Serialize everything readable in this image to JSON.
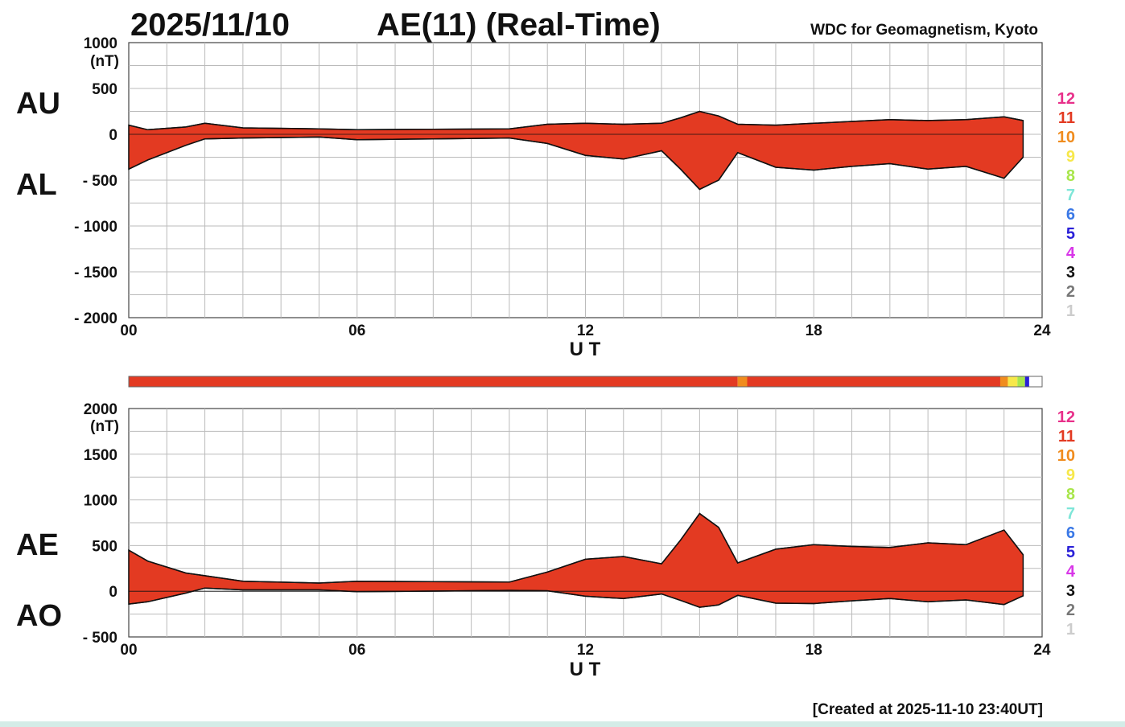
{
  "header": {
    "date": "2025/11/10",
    "title": "AE(11) (Real-Time)",
    "source": "WDC for Geomagnetism, Kyoto",
    "created": "[Created at 2025-11-10 23:40UT]"
  },
  "unit_label": "(nT)",
  "xlabel": "U T",
  "x_ticks": [
    "00",
    "06",
    "12",
    "18",
    "24"
  ],
  "station_count_scale": {
    "labels": [
      "12",
      "11",
      "10",
      "9",
      "8",
      "7",
      "6",
      "5",
      "4",
      "3",
      "2",
      "1"
    ],
    "colors": [
      "#e8308a",
      "#e33a22",
      "#f08c1e",
      "#f7e84a",
      "#a8e64a",
      "#7ee6d8",
      "#3a78e6",
      "#2a20d8",
      "#d836e8",
      "#111111",
      "#777777",
      "#cccccc"
    ]
  },
  "chart_data": [
    {
      "type": "area",
      "panel": "top",
      "series": [
        {
          "name": "AU",
          "x": [
            0,
            0.5,
            1.5,
            2,
            3,
            5,
            6,
            8,
            10,
            11,
            12,
            13,
            14,
            14.5,
            15,
            15.5,
            16,
            17,
            18,
            19,
            20,
            21,
            22,
            23,
            23.5
          ],
          "values": [
            100,
            50,
            80,
            120,
            70,
            60,
            50,
            55,
            60,
            110,
            120,
            110,
            120,
            180,
            250,
            200,
            110,
            100,
            120,
            140,
            160,
            150,
            160,
            190,
            150
          ]
        },
        {
          "name": "AL",
          "x": [
            0,
            0.5,
            1.5,
            2,
            3,
            5,
            6,
            8,
            10,
            11,
            12,
            13,
            14,
            14.5,
            15,
            15.5,
            16,
            17,
            18,
            19,
            20,
            21,
            22,
            23,
            23.5
          ],
          "values": [
            -380,
            -280,
            -120,
            -50,
            -40,
            -30,
            -60,
            -50,
            -40,
            -100,
            -230,
            -270,
            -180,
            -380,
            -600,
            -500,
            -200,
            -360,
            -390,
            -350,
            -320,
            -380,
            -350,
            -480,
            -250
          ]
        }
      ],
      "ylabels": [
        "AU",
        "AL"
      ],
      "ylim": [
        -2000,
        1000
      ],
      "y_ticks": [
        1000,
        500,
        0,
        -500,
        -1000,
        -1500,
        -2000
      ],
      "xlim": [
        0,
        24
      ],
      "grid": true
    },
    {
      "type": "area",
      "panel": "bottom",
      "series": [
        {
          "name": "AE",
          "x": [
            0,
            0.5,
            1.5,
            2,
            3,
            5,
            6,
            8,
            10,
            11,
            12,
            13,
            14,
            14.5,
            15,
            15.5,
            16,
            17,
            18,
            19,
            20,
            21,
            22,
            23,
            23.5
          ],
          "values": [
            450,
            330,
            200,
            170,
            110,
            90,
            110,
            105,
            100,
            210,
            350,
            380,
            300,
            560,
            850,
            700,
            310,
            460,
            510,
            490,
            480,
            530,
            510,
            670,
            400
          ]
        },
        {
          "name": "AO",
          "x": [
            0,
            0.5,
            1.5,
            2,
            3,
            5,
            6,
            8,
            10,
            11,
            12,
            13,
            14,
            14.5,
            15,
            15.5,
            16,
            17,
            18,
            19,
            20,
            21,
            22,
            23,
            23.5
          ],
          "values": [
            -140,
            -115,
            -20,
            35,
            15,
            15,
            -5,
            2,
            10,
            5,
            -55,
            -80,
            -30,
            -100,
            -175,
            -150,
            -45,
            -130,
            -135,
            -105,
            -80,
            -115,
            -95,
            -145,
            -50
          ]
        }
      ],
      "ylabels": [
        "AE",
        "AO"
      ],
      "ylim": [
        -500,
        2000
      ],
      "y_ticks": [
        2000,
        1500,
        1000,
        500,
        0,
        -500
      ],
      "xlim": [
        0,
        24
      ],
      "grid": true
    }
  ],
  "data_coverage_bar": {
    "segments_hours": [
      [
        0,
        16,
        "#e33a22"
      ],
      [
        16,
        16.25,
        "#f08c1e"
      ],
      [
        16.25,
        22.9,
        "#e33a22"
      ],
      [
        22.9,
        23.1,
        "#f08c1e"
      ],
      [
        23.1,
        23.35,
        "#f7e84a"
      ],
      [
        23.35,
        23.55,
        "#a8e64a"
      ],
      [
        23.55,
        23.66,
        "#2a20d8"
      ],
      [
        23.66,
        24,
        "#ffffff"
      ]
    ]
  }
}
